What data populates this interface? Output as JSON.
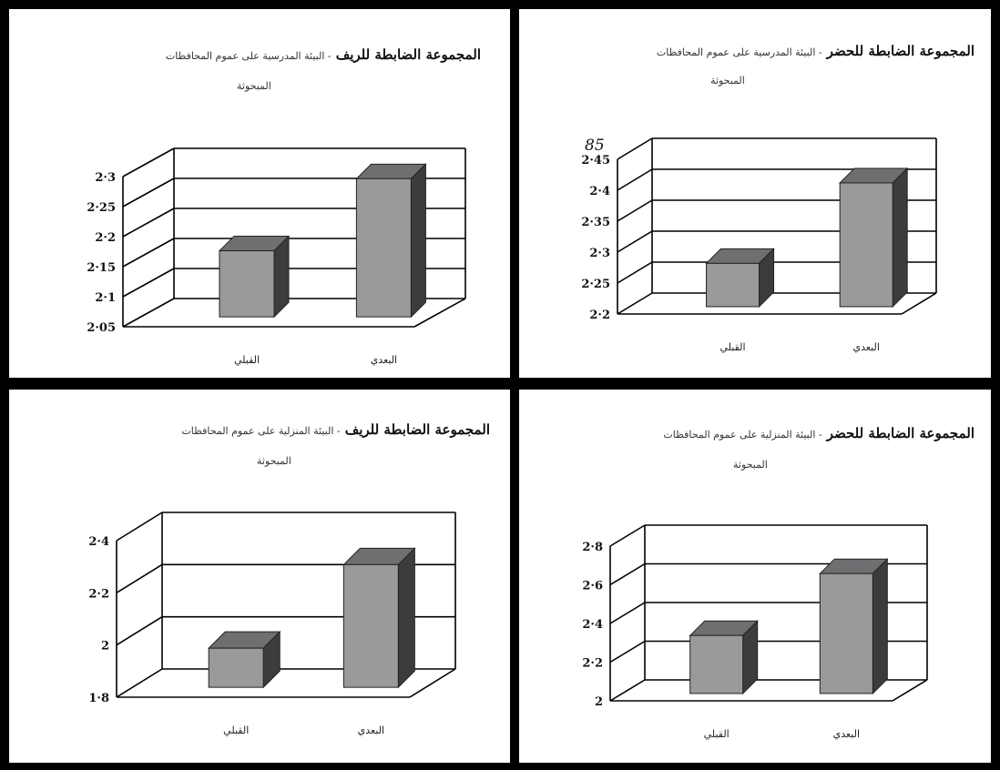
{
  "chart_data": [
    {
      "type": "bar",
      "title": "المجموعة الضابطة للحضر",
      "subtitle": "- البيئة المدرسية على عموم المحافظات",
      "subtitle2": "المبحوثة",
      "categories": [
        "القبلي",
        "البعدي"
      ],
      "values": [
        2.27,
        2.4
      ],
      "yticks": [
        "2.2",
        "2.25",
        "2.3",
        "2.35",
        "2.4",
        "2.45"
      ],
      "ylim": [
        2.2,
        2.45
      ],
      "annotation": "85"
    },
    {
      "type": "bar",
      "title": "المجموعة الضابطة للريف",
      "subtitle": "- البيئة المدرسية على عموم المحافظات",
      "subtitle2": "المبحوثة",
      "categories": [
        "القبلي",
        "البعدي"
      ],
      "values": [
        2.16,
        2.28
      ],
      "yticks": [
        "2.05",
        "2.1",
        "2.15",
        "2.2",
        "2.25",
        "2.3"
      ],
      "ylim": [
        2.05,
        2.3
      ]
    },
    {
      "type": "bar",
      "title": "المجموعة الضابطة للحضر",
      "subtitle": "- البيئة المنزلية على عموم المحافظات",
      "subtitle2": "المبحوثة",
      "categories": [
        "القبلي",
        "البعدي"
      ],
      "values": [
        2.3,
        2.62
      ],
      "yticks": [
        "2",
        "2.2",
        "2.4",
        "2.6",
        "2.8"
      ],
      "ylim": [
        2,
        2.8
      ]
    },
    {
      "type": "bar",
      "title": "المجموعة الضابطة للريف",
      "subtitle": "- البيئة المنزلية على عموم المحافظات",
      "subtitle2": "المبحوثة",
      "categories": [
        "القبلي",
        "البعدي"
      ],
      "values": [
        1.95,
        2.27
      ],
      "yticks": [
        "1.8",
        "2",
        "2.2",
        "2.4"
      ],
      "ylim": [
        1.8,
        2.4
      ]
    }
  ],
  "colors": {
    "bar_front": "#9a9a9a",
    "bar_top": "#6f6f72",
    "bar_side": "#3c3c3c",
    "grid": "#000000"
  }
}
